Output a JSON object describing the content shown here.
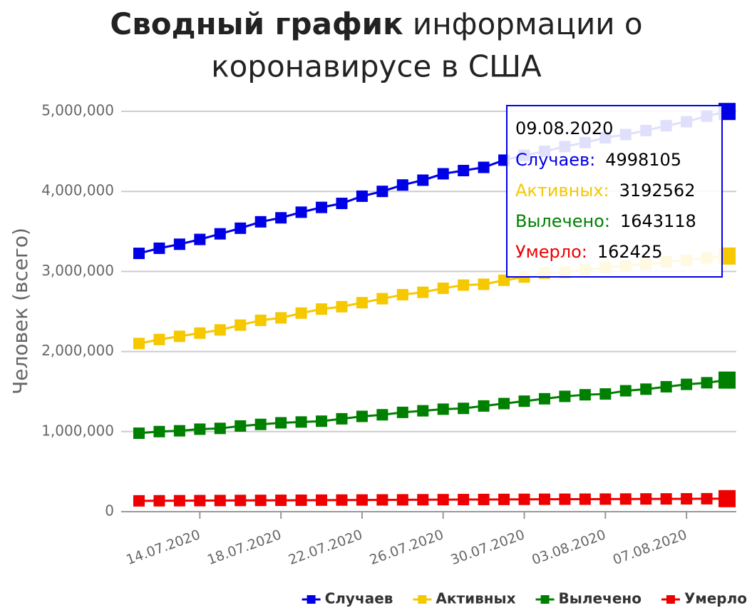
{
  "chart_data": {
    "type": "line",
    "title_bold": "Сводный график",
    "title": "информации о коронавирусе в США",
    "y_label": "Человек (всего)",
    "categories": [
      null,
      null,
      null,
      "14.07.2020",
      null,
      null,
      null,
      "18.07.2020",
      null,
      null,
      null,
      "22.07.2020",
      null,
      null,
      null,
      "26.07.2020",
      null,
      null,
      null,
      "30.07.2020",
      null,
      null,
      null,
      "03.08.2020",
      null,
      null,
      null,
      "07.08.2020",
      null,
      null
    ],
    "series": [
      {
        "name": "Случаев",
        "color": "#0000e6",
        "values": [
          3226000,
          3290000,
          3340000,
          3400000,
          3470000,
          3540000,
          3620000,
          3670000,
          3740000,
          3800000,
          3850000,
          3940000,
          4000000,
          4080000,
          4140000,
          4220000,
          4260000,
          4300000,
          4390000,
          4450000,
          4500000,
          4560000,
          4610000,
          4670000,
          4710000,
          4760000,
          4820000,
          4870000,
          4940000,
          4998105
        ]
      },
      {
        "name": "Активных",
        "color": "#f5c800",
        "values": [
          2100000,
          2150000,
          2190000,
          2230000,
          2270000,
          2330000,
          2390000,
          2420000,
          2480000,
          2530000,
          2560000,
          2610000,
          2660000,
          2710000,
          2740000,
          2790000,
          2830000,
          2840000,
          2890000,
          2930000,
          2980000,
          2990000,
          3020000,
          3050000,
          3070000,
          3090000,
          3120000,
          3140000,
          3170000,
          3192562
        ]
      },
      {
        "name": "Вылечено",
        "color": "#008000",
        "values": [
          980000,
          1000000,
          1010000,
          1030000,
          1040000,
          1070000,
          1090000,
          1110000,
          1120000,
          1130000,
          1160000,
          1190000,
          1210000,
          1240000,
          1260000,
          1280000,
          1290000,
          1320000,
          1350000,
          1380000,
          1410000,
          1440000,
          1460000,
          1470000,
          1510000,
          1530000,
          1560000,
          1590000,
          1610000,
          1643118
        ]
      },
      {
        "name": "Умерло",
        "color": "#ee0000",
        "values": [
          135000,
          136000,
          137000,
          138000,
          139000,
          140000,
          141000,
          142000,
          143000,
          144000,
          145000,
          146000,
          147000,
          148000,
          149000,
          150000,
          151000,
          152000,
          153000,
          154000,
          155000,
          155500,
          156000,
          157000,
          158000,
          159000,
          159500,
          160500,
          161500,
          162425
        ]
      }
    ],
    "ylim": [
      0,
      5000000
    ],
    "yticks": [
      0,
      {
        "value": 1000000,
        "label": "1,000,000"
      },
      {
        "value": 2000000,
        "label": "2,000,000"
      },
      {
        "value": 3000000,
        "label": "3,000,000"
      },
      {
        "value": 4000000,
        "label": "4,000,000"
      },
      {
        "value": 5000000,
        "label": "5,000,000"
      }
    ],
    "grid": true,
    "legend": "bottom-right",
    "tooltip": {
      "title": "09.08.2020",
      "labels": [
        "Случаев:",
        "Активных:",
        "Вылечено:",
        "Умерло:"
      ]
    }
  }
}
